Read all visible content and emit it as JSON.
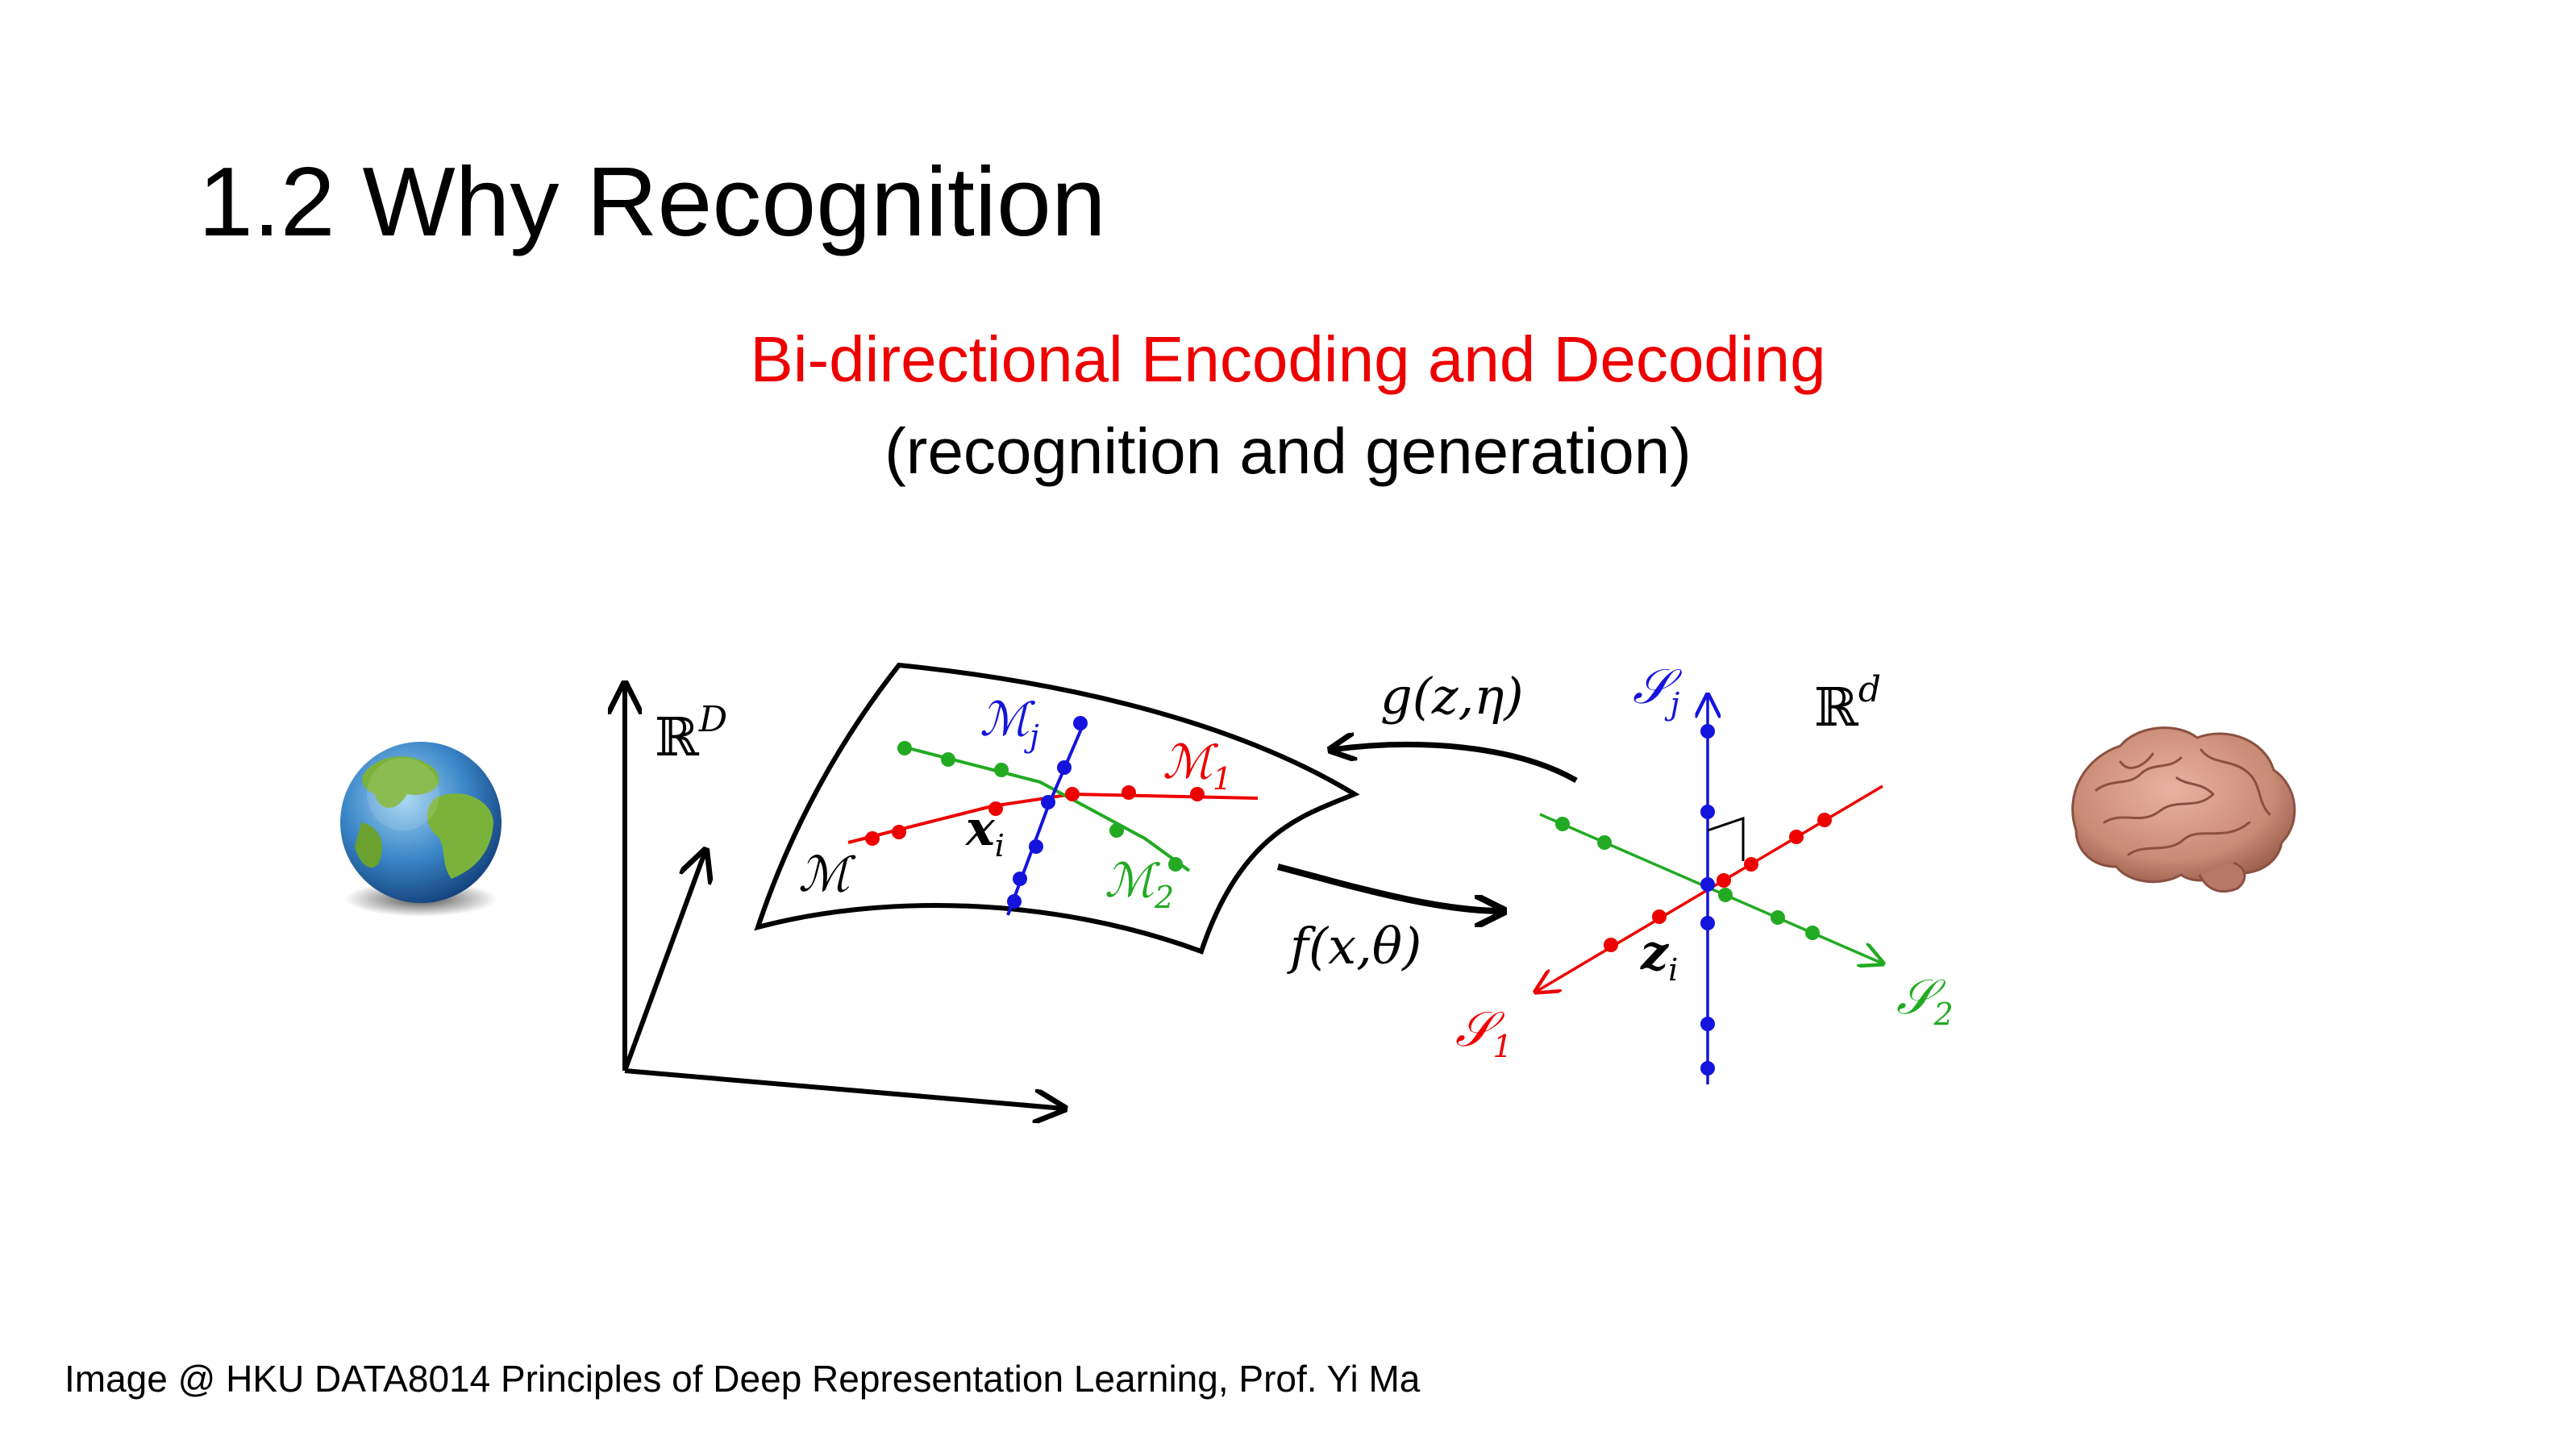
{
  "slide": {
    "title": "1.2 Why Recognition",
    "subtitle_line1": "Bi-directional Encoding and Decoding",
    "subtitle_line2": "(recognition and generation)",
    "credit": "Image @ HKU DATA8014 Principles of Deep Representation Learning, Prof. Yi Ma"
  },
  "colors": {
    "subtitle_red": "#ee0000",
    "curve_red": "#ee0000",
    "curve_green": "#22aa22",
    "curve_blue": "#1414dd"
  },
  "icons": [
    "earth-globe-icon",
    "human-brain-icon"
  ],
  "diagram": {
    "ambient_space_label": "ℝ",
    "ambient_space_sup": "D",
    "manifold_label": "ℳ",
    "submanifold_j": {
      "base": "ℳ",
      "sub": "j"
    },
    "submanifold_1": {
      "base": "ℳ",
      "sub": "1"
    },
    "submanifold_2": {
      "base": "ℳ",
      "sub": "2"
    },
    "point_x": {
      "base": "x",
      "sub": "i"
    },
    "decoder_label": "g(z,η)",
    "encoder_label": "f(x,θ)",
    "feature_space_label": "ℝ",
    "feature_space_sup": "d",
    "subspace_j": {
      "base": "𝒮",
      "sub": "j"
    },
    "subspace_1": {
      "base": "𝒮",
      "sub": "1"
    },
    "subspace_2": {
      "base": "𝒮",
      "sub": "2"
    },
    "point_z": {
      "base": "z",
      "sub": "i"
    }
  }
}
